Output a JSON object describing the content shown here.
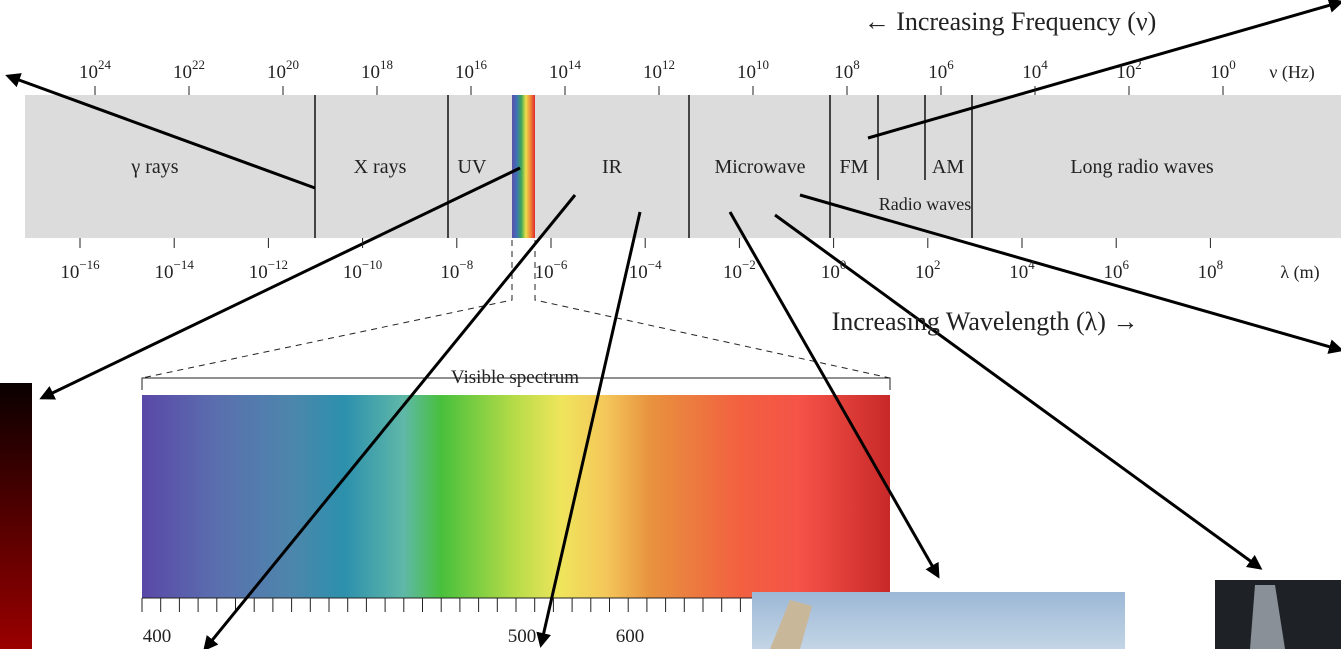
{
  "frequency_title": "← Increasing Frequency (ν)",
  "frequency_unit": "ν (Hz)",
  "frequency_ticks": [
    {
      "base": "10",
      "exp": "24"
    },
    {
      "base": "10",
      "exp": "22"
    },
    {
      "base": "10",
      "exp": "20"
    },
    {
      "base": "10",
      "exp": "18"
    },
    {
      "base": "10",
      "exp": "16"
    },
    {
      "base": "10",
      "exp": "14"
    },
    {
      "base": "10",
      "exp": "12"
    },
    {
      "base": "10",
      "exp": "10"
    },
    {
      "base": "10",
      "exp": "8"
    },
    {
      "base": "10",
      "exp": "6"
    },
    {
      "base": "10",
      "exp": "4"
    },
    {
      "base": "10",
      "exp": "2"
    },
    {
      "base": "10",
      "exp": "0"
    }
  ],
  "wavelength_title": "Increasing Wavelength (λ) →",
  "wavelength_unit": "λ (m)",
  "wavelength_ticks": [
    {
      "base": "10",
      "exp": "−16"
    },
    {
      "base": "10",
      "exp": "−14"
    },
    {
      "base": "10",
      "exp": "−12"
    },
    {
      "base": "10",
      "exp": "−10"
    },
    {
      "base": "10",
      "exp": "−8"
    },
    {
      "base": "10",
      "exp": "−6"
    },
    {
      "base": "10",
      "exp": "−4"
    },
    {
      "base": "10",
      "exp": "−2"
    },
    {
      "base": "10",
      "exp": "0"
    },
    {
      "base": "10",
      "exp": "2"
    },
    {
      "base": "10",
      "exp": "4"
    },
    {
      "base": "10",
      "exp": "6"
    },
    {
      "base": "10",
      "exp": "8"
    }
  ],
  "bands": [
    "γ rays",
    "X rays",
    "UV",
    "IR",
    "Microwave",
    "FM",
    "AM",
    "Long radio waves"
  ],
  "radio_label": "Radio waves",
  "visible": {
    "title": "Visible spectrum",
    "tick_labels": [
      "400",
      "500",
      "600"
    ]
  }
}
